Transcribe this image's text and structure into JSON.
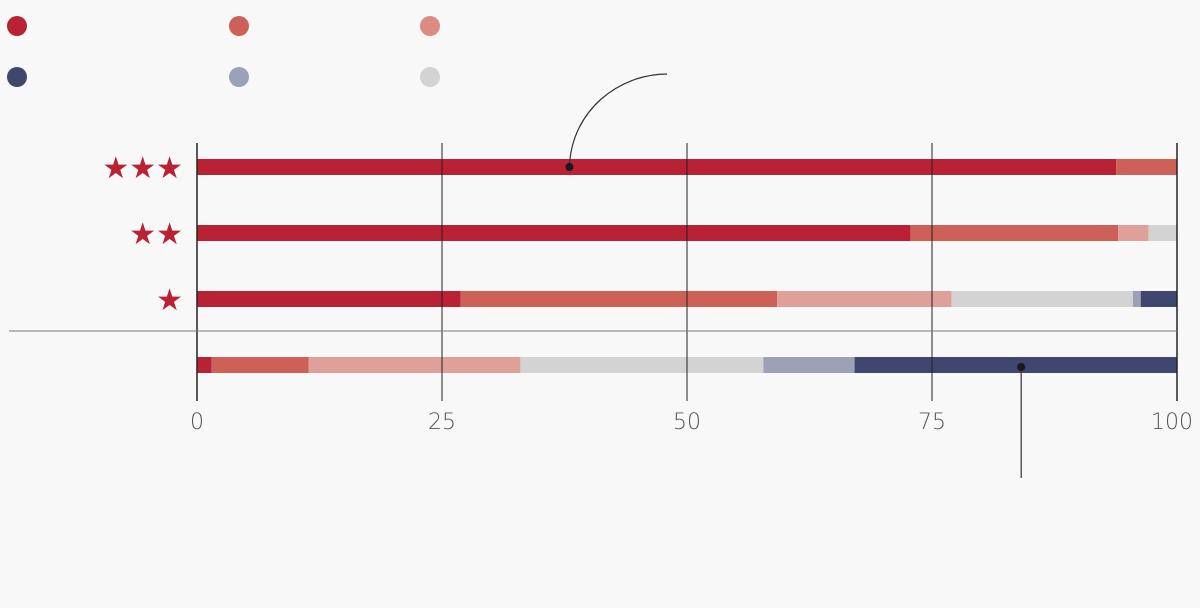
{
  "chart_data": {
    "type": "bar",
    "stacked": true,
    "orientation": "horizontal",
    "xlim": [
      0,
      100
    ],
    "xticks": [
      "0",
      "25",
      "50",
      "75",
      "100"
    ],
    "grid": true,
    "legend_position": "top-left",
    "legend": {
      "rows": [
        [
          "#b82234",
          "#cd6157",
          "#db8a84"
        ],
        [
          "#3f476e",
          "#9ca1b6",
          "#d3d3d3"
        ]
      ]
    },
    "categories": [
      {
        "label": "★★★",
        "color": "#b82234"
      },
      {
        "label": "★★",
        "color": "#b82234"
      },
      {
        "label": "★",
        "color": "#b82234"
      },
      {
        "label": "",
        "color": "#b82234"
      }
    ],
    "segment_colors": [
      "#b82234",
      "#cd6157",
      "#e0a09a",
      "#d3d3d3",
      "#9ca1b6",
      "#3f476e"
    ],
    "series": [
      {
        "values": [
          93.8,
          72.8,
          26.9,
          1.5
        ]
      },
      {
        "values": [
          6.2,
          21.2,
          32.3,
          9.9
        ]
      },
      {
        "values": [
          0,
          3.1,
          17.8,
          21.6
        ]
      },
      {
        "values": [
          0,
          2.9,
          18.5,
          24.8
        ]
      },
      {
        "values": [
          0,
          0,
          0.8,
          9.3
        ]
      },
      {
        "values": [
          0,
          0,
          3.7,
          32.9
        ]
      }
    ],
    "annotations": [
      {
        "row": 0,
        "x": 38
      },
      {
        "row": 3,
        "x": 84.1
      }
    ]
  }
}
